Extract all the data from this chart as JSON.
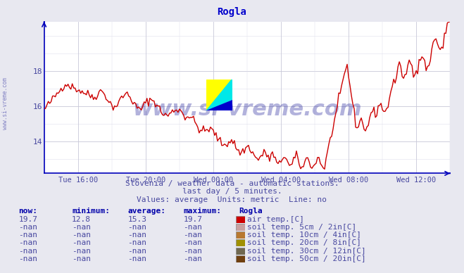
{
  "title": "Rogla",
  "title_color": "#0000cc",
  "bg_color": "#e8e8f0",
  "plot_bg_color": "#ffffff",
  "line_color": "#cc0000",
  "line_width": 1.0,
  "grid_color_major": "#c8c8d8",
  "grid_color_minor": "#e0e0ec",
  "xlabel_color": "#4848a0",
  "ylabel_color": "#4848a0",
  "axis_color": "#0000bb",
  "yticks": [
    14,
    16,
    18
  ],
  "ymin": 12.2,
  "ymax": 20.8,
  "xtick_labels": [
    "Tue 16:00",
    "Tue 20:00",
    "Wed 00:00",
    "Wed 04:00",
    "Wed 08:00",
    "Wed 12:00"
  ],
  "watermark_text": "www.si-vreme.com",
  "watermark_color": "#00008b",
  "watermark_alpha": 0.3,
  "watermark_fontsize": 22,
  "subtitle1": "Slovenia / weather data - automatic stations.",
  "subtitle2": "last day / 5 minutes.",
  "subtitle3": "Values: average  Units: metric  Line: no",
  "subtitle_color": "#4848a0",
  "subtitle_fontsize": 8,
  "table_header_color": "#0000aa",
  "table_data_color": "#4848a0",
  "table_fontsize": 8,
  "legend_items": [
    {
      "label": "air temp.[C]",
      "color": "#cc0000"
    },
    {
      "label": "soil temp. 5cm / 2in[C]",
      "color": "#c8a0a0"
    },
    {
      "label": "soil temp. 10cm / 4in[C]",
      "color": "#b87830"
    },
    {
      "label": "soil temp. 20cm / 8in[C]",
      "color": "#a09000"
    },
    {
      "label": "soil temp. 30cm / 12in[C]",
      "color": "#706850"
    },
    {
      "label": "soil temp. 50cm / 20in[C]",
      "color": "#704010"
    }
  ],
  "now_val": "19.7",
  "min_val": "12.8",
  "avg_val": "15.3",
  "max_val": "19.7"
}
